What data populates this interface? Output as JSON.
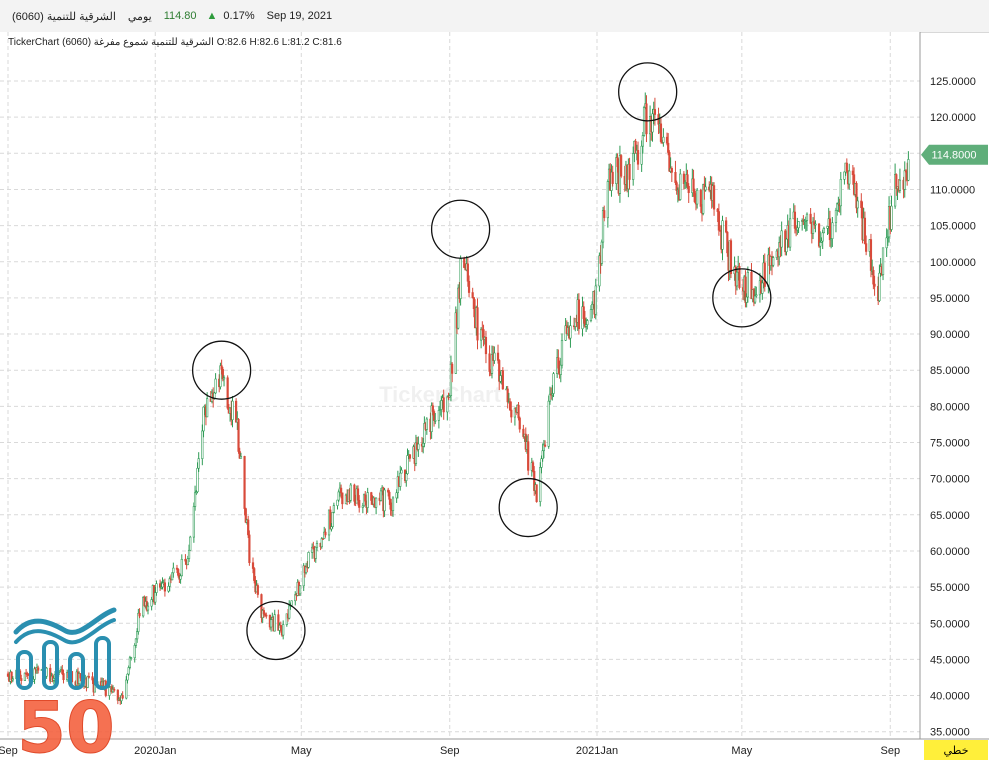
{
  "header": {
    "symbol": "(6060) الشرقية للتنمية",
    "period": "يومي",
    "last_price": "114.80",
    "change_pct": "0.17%",
    "date": "Sep 19, 2021",
    "up_indicator_icon": "up-triangle-icon"
  },
  "chart_info": "TickerChart الشرقية للتنمية شموع مفرغة (6060) O:82.6 H:82.6 L:81.2 C:81.6",
  "watermark": "TickerChart",
  "scale_button": "خطي",
  "logo": {
    "icon": "bar-chart-wave-logo",
    "text": "50"
  },
  "colors": {
    "up": "#2e9b55",
    "down": "#d84a3a",
    "price_tag": "#5fae7a",
    "circle": "#111111",
    "grid": "#d8d8d8"
  },
  "chart_data": {
    "type": "candlestick",
    "price_tag": "114.8000",
    "ylim": [
      32,
      130
    ],
    "y_ticks": [
      {
        "v": 125,
        "label": "125.0000"
      },
      {
        "v": 120,
        "label": "120.0000"
      },
      {
        "v": 115,
        "label": "115.0000"
      },
      {
        "v": 110,
        "label": "110.0000"
      },
      {
        "v": 105,
        "label": "105.0000"
      },
      {
        "v": 100,
        "label": "100.0000"
      },
      {
        "v": 95,
        "label": "95.0000"
      },
      {
        "v": 90,
        "label": "90.0000"
      },
      {
        "v": 85,
        "label": "85.0000"
      },
      {
        "v": 80,
        "label": "80.0000"
      },
      {
        "v": 75,
        "label": "75.0000"
      },
      {
        "v": 70,
        "label": "70.0000"
      },
      {
        "v": 65,
        "label": "65.0000"
      },
      {
        "v": 60,
        "label": "60.0000"
      },
      {
        "v": 55,
        "label": "55.0000"
      },
      {
        "v": 50,
        "label": "50.0000"
      },
      {
        "v": 45,
        "label": "45.0000"
      },
      {
        "v": 40,
        "label": "40.0000"
      },
      {
        "v": 35,
        "label": "35.0000"
      }
    ],
    "x_labels": [
      "Sep",
      "2020Jan",
      "May",
      "Sep",
      "2021Jan",
      "May",
      "Sep"
    ],
    "anchors": [
      {
        "d": "2019-09-01",
        "v": 43
      },
      {
        "d": "2019-10-15",
        "v": 43
      },
      {
        "d": "2019-11-20",
        "v": 41
      },
      {
        "d": "2019-12-05",
        "v": 39
      },
      {
        "d": "2019-12-20",
        "v": 52
      },
      {
        "d": "2020-01-10",
        "v": 56
      },
      {
        "d": "2020-01-28",
        "v": 58
      },
      {
        "d": "2020-02-10",
        "v": 78
      },
      {
        "d": "2020-02-25",
        "v": 84
      },
      {
        "d": "2020-03-08",
        "v": 78
      },
      {
        "d": "2020-03-20",
        "v": 58
      },
      {
        "d": "2020-03-28",
        "v": 52
      },
      {
        "d": "2020-04-15",
        "v": 49
      },
      {
        "d": "2020-05-05",
        "v": 58
      },
      {
        "d": "2020-06-05",
        "v": 68
      },
      {
        "d": "2020-07-15",
        "v": 67
      },
      {
        "d": "2020-08-15",
        "v": 78
      },
      {
        "d": "2020-09-01",
        "v": 82
      },
      {
        "d": "2020-09-12",
        "v": 102
      },
      {
        "d": "2020-09-25",
        "v": 90
      },
      {
        "d": "2020-10-12",
        "v": 84
      },
      {
        "d": "2020-10-28",
        "v": 78
      },
      {
        "d": "2020-11-12",
        "v": 68
      },
      {
        "d": "2020-11-25",
        "v": 82
      },
      {
        "d": "2020-12-10",
        "v": 92
      },
      {
        "d": "2020-12-30",
        "v": 94
      },
      {
        "d": "2021-01-10",
        "v": 112
      },
      {
        "d": "2021-01-28",
        "v": 112
      },
      {
        "d": "2021-02-12",
        "v": 121
      },
      {
        "d": "2021-03-10",
        "v": 110
      },
      {
        "d": "2021-04-05",
        "v": 109
      },
      {
        "d": "2021-04-28",
        "v": 97
      },
      {
        "d": "2021-05-10",
        "v": 96
      },
      {
        "d": "2021-05-28",
        "v": 101
      },
      {
        "d": "2021-06-15",
        "v": 105
      },
      {
        "d": "2021-07-10",
        "v": 103
      },
      {
        "d": "2021-07-28",
        "v": 112
      },
      {
        "d": "2021-08-10",
        "v": 104
      },
      {
        "d": "2021-08-22",
        "v": 97
      },
      {
        "d": "2021-09-05",
        "v": 110
      },
      {
        "d": "2021-09-19",
        "v": 115
      }
    ],
    "circles": [
      {
        "d": "2020-02-25",
        "v": 85
      },
      {
        "d": "2020-04-10",
        "v": 49
      },
      {
        "d": "2020-09-10",
        "v": 104.5
      },
      {
        "d": "2020-11-05",
        "v": 66
      },
      {
        "d": "2021-02-12",
        "v": 123.5
      },
      {
        "d": "2021-05-01",
        "v": 95
      }
    ]
  }
}
